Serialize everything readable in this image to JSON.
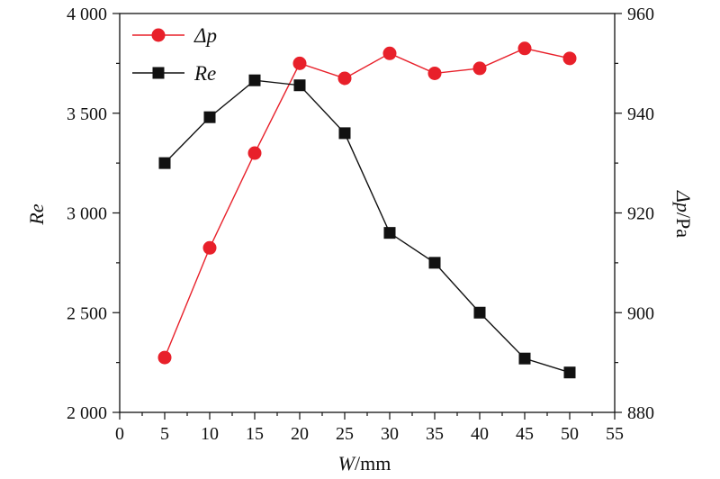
{
  "chart_data": {
    "type": "line",
    "x": [
      5,
      10,
      15,
      20,
      25,
      30,
      35,
      40,
      45,
      50
    ],
    "xlabel_var": "W",
    "xlabel_unit": "/mm",
    "ylabel_left": "Re",
    "ylabel_right_var": "Δp",
    "ylabel_right_unit": "/Pa",
    "xlim": [
      0,
      55
    ],
    "ylim_left": [
      2000,
      4000
    ],
    "ylim_right": [
      880,
      960
    ],
    "x_ticks": [
      0,
      5,
      10,
      15,
      20,
      25,
      30,
      35,
      40,
      45,
      50,
      55
    ],
    "y_left_ticks": [
      2000,
      2500,
      3000,
      3500,
      4000
    ],
    "y_left_tick_labels": [
      "2 000",
      "2 500",
      "3 000",
      "3 500",
      "4 000"
    ],
    "y_right_ticks": [
      880,
      900,
      920,
      940,
      960
    ],
    "grid": false,
    "legend_position": "top-left",
    "series": [
      {
        "name": "Δp",
        "axis": "right",
        "marker": "circle",
        "color": "#e8202a",
        "values": [
          891,
          913,
          932,
          950,
          947,
          952,
          948,
          949,
          953,
          951
        ]
      },
      {
        "name": "Re",
        "axis": "left",
        "marker": "square",
        "color": "#111111",
        "values": [
          3250,
          3480,
          3665,
          3640,
          3400,
          2900,
          2750,
          2500,
          2270,
          2200
        ]
      }
    ]
  }
}
